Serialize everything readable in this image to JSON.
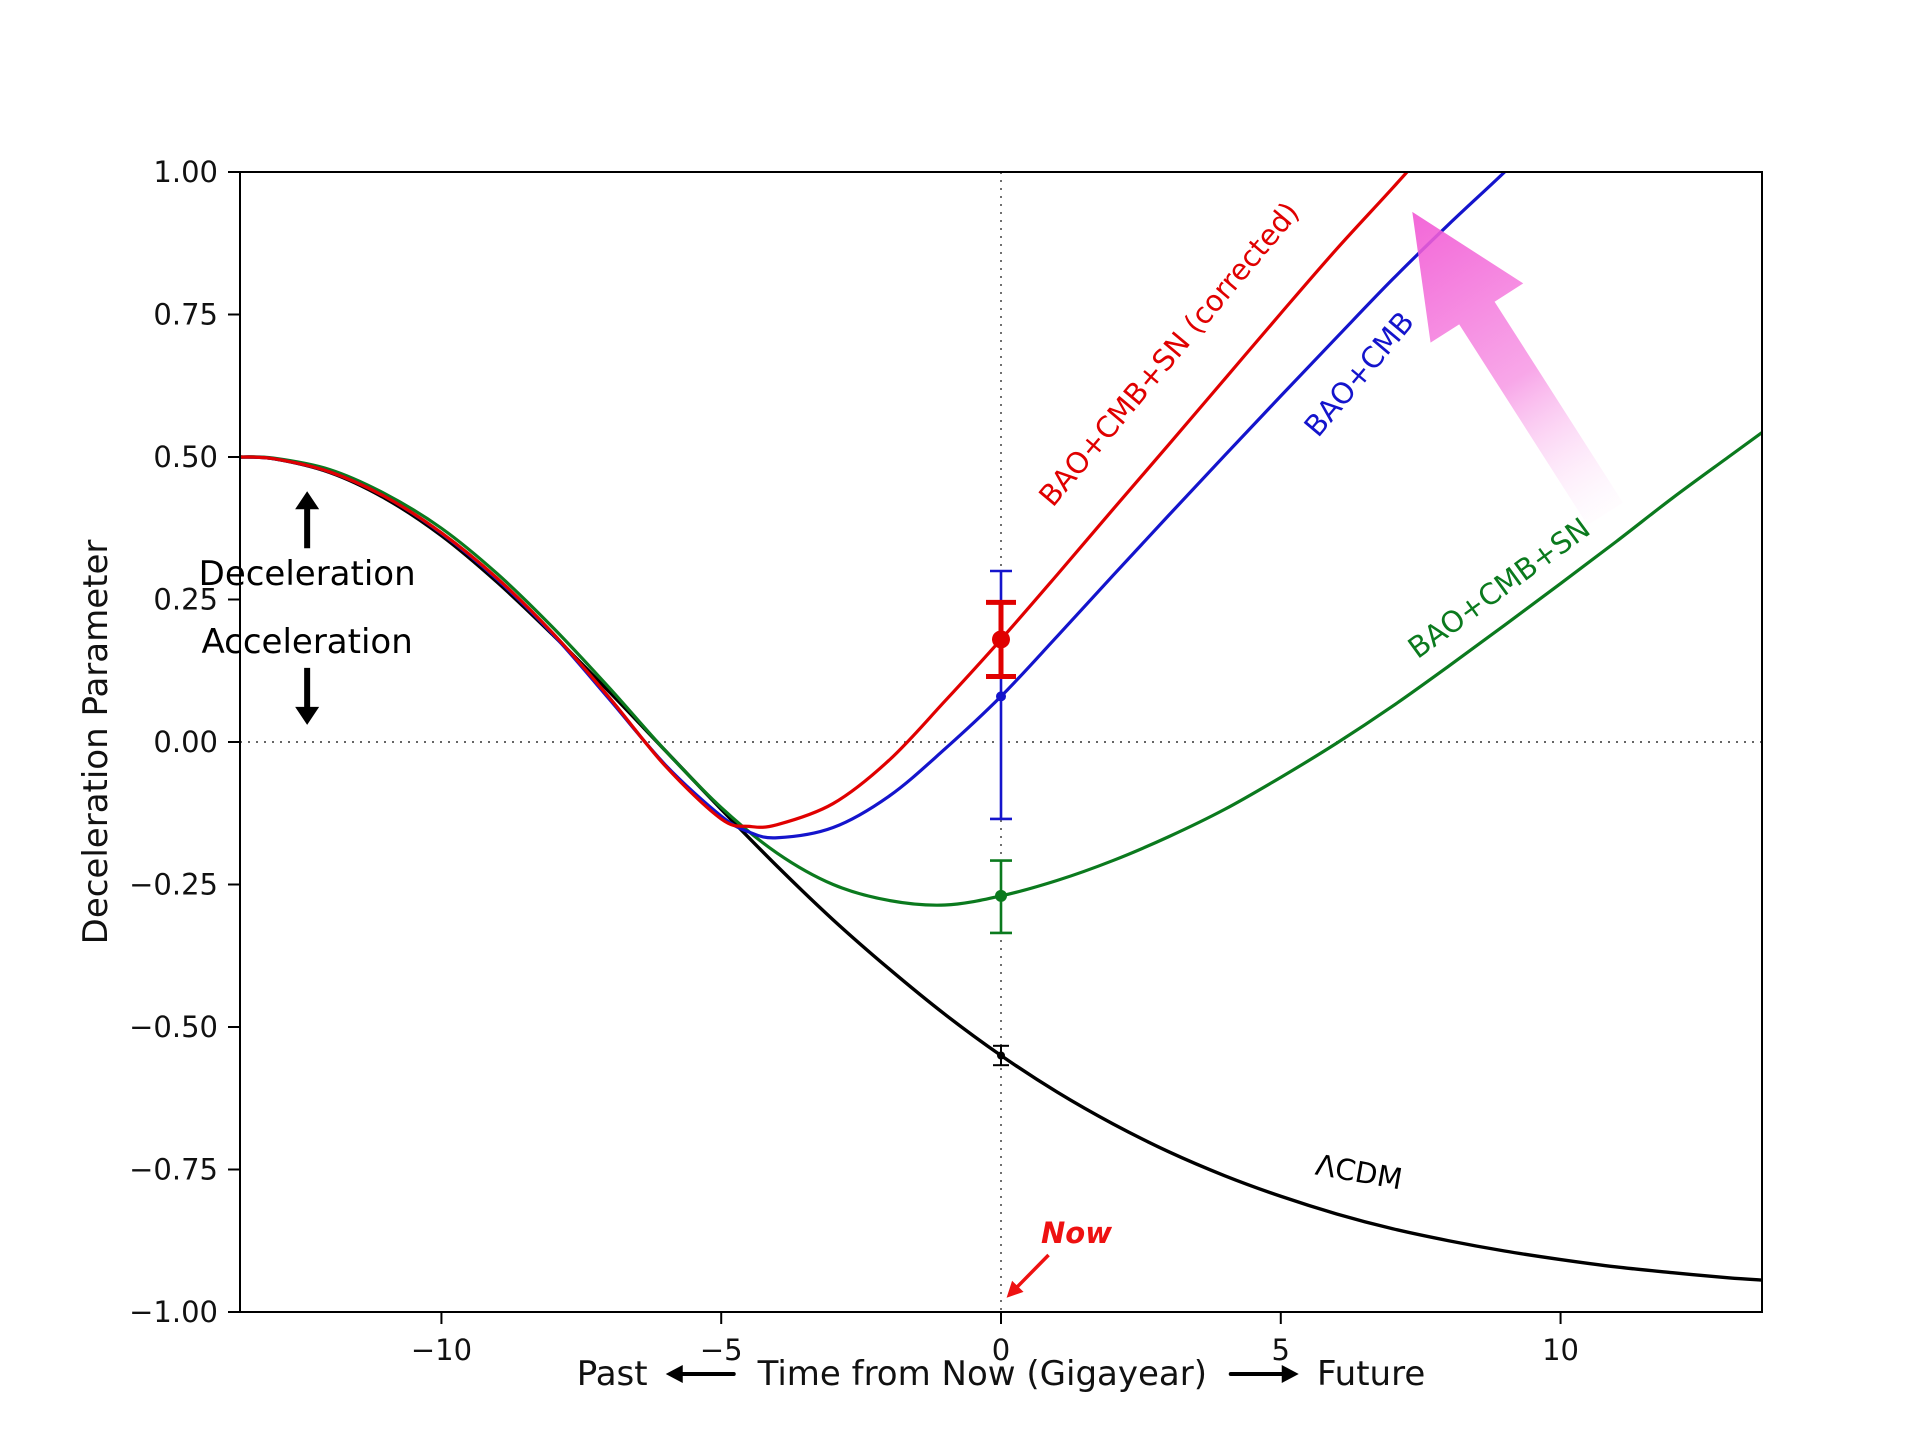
{
  "figure": {
    "background": "#ffffff"
  },
  "chart_data": {
    "type": "line",
    "title": "",
    "ylabel": "Deceleration Parameter",
    "xlabel_parts": {
      "past": "Past",
      "center": "Time from Now (Gigayear)",
      "future": "Future"
    },
    "xlim": [
      -13.6,
      13.6
    ],
    "ylim": [
      -1.0,
      1.0
    ],
    "xticks": [
      -10,
      -5,
      0,
      5,
      10
    ],
    "xtick_labels": [
      "−10",
      "−5",
      "0",
      "5",
      "10"
    ],
    "yticks": [
      -1.0,
      -0.75,
      -0.5,
      -0.25,
      0.0,
      0.25,
      0.5,
      0.75,
      1.0
    ],
    "ytick_labels": [
      "−1.00",
      "−0.75",
      "−0.50",
      "−0.25",
      "0.00",
      "0.25",
      "0.50",
      "0.75",
      "1.00"
    ],
    "grid": false,
    "reference_lines": {
      "horizontal_y": 0,
      "vertical_x": 0,
      "style": "dotted",
      "color": "#333333"
    },
    "series": [
      {
        "name": "ΛCDM",
        "color": "#000000",
        "width": 3.4,
        "x": [
          -13.6,
          -13,
          -12,
          -11,
          -10,
          -9,
          -8,
          -7,
          -6,
          -5,
          -4,
          -3,
          -2,
          -1,
          0,
          1,
          2,
          3,
          4,
          5,
          6,
          7,
          8,
          9,
          10,
          11,
          12,
          13,
          13.6
        ],
        "y": [
          0.5,
          0.497,
          0.473,
          0.427,
          0.362,
          0.28,
          0.187,
          0.088,
          -0.015,
          -0.118,
          -0.218,
          -0.312,
          -0.398,
          -0.478,
          -0.55,
          -0.614,
          -0.67,
          -0.719,
          -0.761,
          -0.797,
          -0.828,
          -0.854,
          -0.875,
          -0.893,
          -0.908,
          -0.921,
          -0.931,
          -0.94,
          -0.944
        ],
        "label": {
          "text": "ΛCDM",
          "x": 6.4,
          "y": -0.755,
          "rotation": 10,
          "color": "#000000"
        }
      },
      {
        "name": "BAO+CMB+SN",
        "color": "#0b7a1e",
        "width": 3.2,
        "x": [
          -13.6,
          -13,
          -12,
          -11,
          -10,
          -9,
          -8,
          -7,
          -6,
          -5,
          -4,
          -3,
          -2,
          -1,
          0,
          1,
          2,
          3,
          4,
          5,
          6,
          7,
          8,
          9,
          10,
          11,
          12,
          13,
          13.6
        ],
        "y": [
          0.5,
          0.498,
          0.478,
          0.435,
          0.375,
          0.295,
          0.2,
          0.095,
          -0.015,
          -0.115,
          -0.195,
          -0.25,
          -0.278,
          -0.286,
          -0.27,
          -0.243,
          -0.208,
          -0.166,
          -0.118,
          -0.062,
          -0.002,
          0.063,
          0.133,
          0.205,
          0.278,
          0.352,
          0.428,
          0.5,
          0.543
        ],
        "label": {
          "text": "BAO+CMB+SN",
          "x": 8.9,
          "y": 0.27,
          "rotation": -36,
          "color": "#0b7a1e"
        }
      },
      {
        "name": "BAO+CMB",
        "color": "#1414cc",
        "width": 3.2,
        "x": [
          -13.6,
          -13,
          -12,
          -11,
          -10,
          -9,
          -8,
          -7,
          -6,
          -5,
          -4.5,
          -4,
          -3,
          -2,
          -1,
          0,
          1,
          2,
          3,
          4,
          5,
          6,
          7,
          8,
          9,
          9.6
        ],
        "y": [
          0.5,
          0.497,
          0.474,
          0.43,
          0.366,
          0.285,
          0.188,
          0.075,
          -0.04,
          -0.13,
          -0.158,
          -0.168,
          -0.15,
          -0.095,
          -0.012,
          0.08,
          0.185,
          0.292,
          0.398,
          0.503,
          0.607,
          0.71,
          0.812,
          0.908,
          1.0,
          1.06
        ],
        "label": {
          "text": "BAO+CMB",
          "x": 6.4,
          "y": 0.645,
          "rotation": -50,
          "color": "#1414cc"
        }
      },
      {
        "name": "BAO+CMB+SN (corrected)",
        "color": "#e00000",
        "width": 3.2,
        "x": [
          -13.6,
          -13,
          -12,
          -11,
          -10,
          -9,
          -8,
          -7,
          -6,
          -5,
          -4.5,
          -4,
          -3,
          -2,
          -1,
          0,
          1,
          2,
          3,
          4,
          5,
          6,
          7,
          7.8
        ],
        "y": [
          0.5,
          0.497,
          0.474,
          0.43,
          0.367,
          0.287,
          0.19,
          0.078,
          -0.042,
          -0.135,
          -0.148,
          -0.145,
          -0.108,
          -0.032,
          0.072,
          0.18,
          0.293,
          0.408,
          0.522,
          0.637,
          0.752,
          0.865,
          0.972,
          1.06
        ],
        "label": {
          "text": "BAO+CMB+SN (corrected)",
          "x": 3.0,
          "y": 0.68,
          "rotation": -50,
          "color": "#e00000"
        }
      }
    ],
    "data_points": [
      {
        "name": "lcdm-now",
        "x": 0,
        "y": -0.55,
        "err_lo": -0.567,
        "err_hi": -0.533,
        "color": "#000000",
        "marker_size": 4,
        "line_width": 2,
        "cap_width": 16
      },
      {
        "name": "bao-cmb-sn-now",
        "x": 0,
        "y": -0.27,
        "err_lo": -0.335,
        "err_hi": -0.208,
        "color": "#0b7a1e",
        "marker_size": 6,
        "line_width": 2.6,
        "cap_width": 22
      },
      {
        "name": "bao-cmb-now",
        "x": 0,
        "y": 0.08,
        "err_lo": -0.135,
        "err_hi": 0.3,
        "color": "#1414cc",
        "marker_size": 5,
        "line_width": 2.6,
        "cap_width": 22
      },
      {
        "name": "corrected-now",
        "x": 0,
        "y": 0.18,
        "err_lo": 0.115,
        "err_hi": 0.245,
        "color": "#e00000",
        "marker_size": 9,
        "line_width": 5,
        "cap_width": 30
      }
    ],
    "annotations": {
      "deceleration": {
        "text": "Deceleration",
        "x": -12.4,
        "y": 0.295,
        "color": "#000000"
      },
      "acceleration": {
        "text": "Acceleration",
        "x": -12.4,
        "y": 0.175,
        "color": "#000000"
      },
      "up_arrow": {
        "x": -12.4,
        "y1": 0.34,
        "y2": 0.44,
        "color": "#000000"
      },
      "down_arrow": {
        "x": -12.4,
        "y1": 0.13,
        "y2": 0.03,
        "color": "#000000"
      },
      "now": {
        "text": "Now",
        "x": 1.35,
        "y": -0.862,
        "color": "#ee1111"
      },
      "now_arrow": {
        "x1": 0.85,
        "y1": -0.9,
        "x2": 0.1,
        "y2": -0.975,
        "color": "#ee1111"
      },
      "trend_arrow": {
        "tip_x": 7.35,
        "tip_y": 0.93,
        "tail_x": 10.8,
        "tail_y": 0.4,
        "color": "#f25fd6",
        "fade_color": "#fdeafb"
      }
    }
  }
}
